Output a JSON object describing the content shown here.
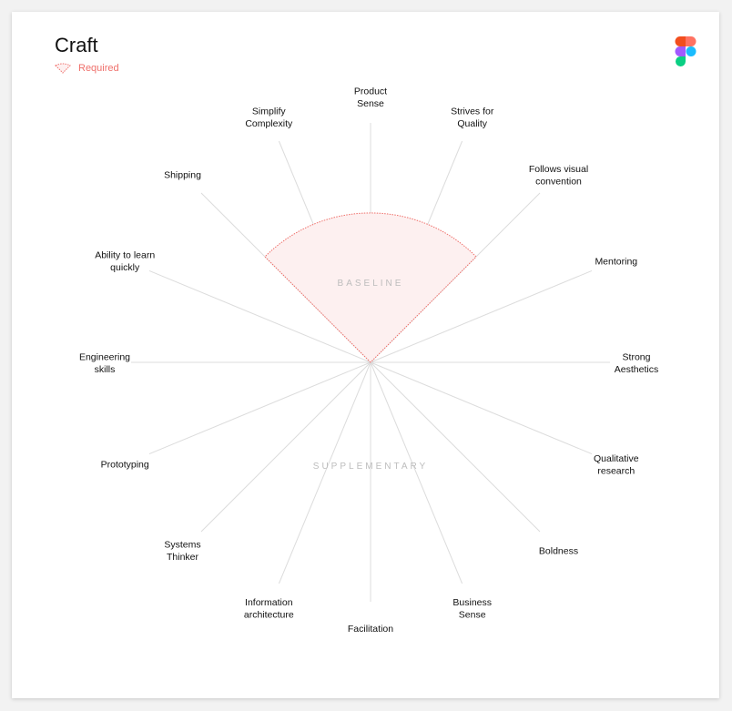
{
  "header": {
    "title": "Craft"
  },
  "legend": {
    "required_label": "Required"
  },
  "zones": {
    "inner": "BASELINE",
    "outer": "SUPPLEMENTARY"
  },
  "skills": [
    {
      "name": [
        "Product",
        "Sense"
      ],
      "required": true
    },
    {
      "name": [
        "Strives for",
        "Quality"
      ],
      "required": true
    },
    {
      "name": [
        "Follows visual",
        "convention"
      ],
      "required": false
    },
    {
      "name": [
        "Mentoring"
      ],
      "required": false
    },
    {
      "name": [
        "Strong",
        "Aesthetics"
      ],
      "required": false
    },
    {
      "name": [
        "Qualitative",
        "research"
      ],
      "required": false
    },
    {
      "name": [
        "Boldness"
      ],
      "required": false
    },
    {
      "name": [
        "Business",
        "Sense"
      ],
      "required": false
    },
    {
      "name": [
        "Facilitation"
      ],
      "required": false
    },
    {
      "name": [
        "Information",
        "architecture"
      ],
      "required": false
    },
    {
      "name": [
        "Systems",
        "Thinker"
      ],
      "required": false
    },
    {
      "name": [
        "Prototyping"
      ],
      "required": false
    },
    {
      "name": [
        "Engineering",
        "skills"
      ],
      "required": false
    },
    {
      "name": [
        "Ability to learn",
        "quickly"
      ],
      "required": false
    },
    {
      "name": [
        "Shipping"
      ],
      "required": false
    },
    {
      "name": [
        "Simplify",
        "Complexity"
      ],
      "required": true
    }
  ],
  "colors": {
    "accent": "#ef6f6a",
    "fill": "#fdf0f0",
    "spoke": "#dcdcdc"
  }
}
